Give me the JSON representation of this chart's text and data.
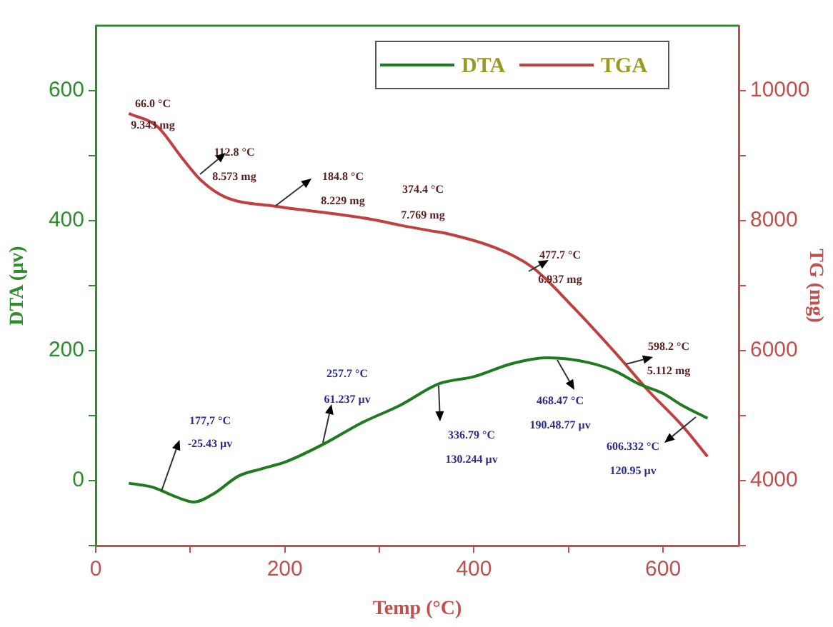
{
  "chart_data": {
    "type": "line",
    "xlabel": "Temp (°C)",
    "ylabel": "DTA (µv)",
    "y2label": "TG (mg)",
    "xlim": [
      0,
      680
    ],
    "xticks": [
      0,
      {
        "value": 100,
        "label": null
      },
      200,
      {
        "value": 300,
        "label": null
      },
      400,
      {
        "value": 500,
        "label": null
      },
      600
    ],
    "ylim": [
      -100,
      700
    ],
    "yticks": [
      {
        "value": -100,
        "label": null
      },
      0,
      {
        "value": 100,
        "label": null
      },
      200,
      {
        "value": 300,
        "label": null
      },
      400,
      {
        "value": 500,
        "label": null
      },
      600
    ],
    "y2lim": [
      3000,
      11000
    ],
    "y2ticks": [
      {
        "value": 3000,
        "label": null
      },
      4000,
      {
        "value": 5000,
        "label": null
      },
      6000,
      {
        "value": 7000,
        "label": null
      },
      8000,
      {
        "value": 9000,
        "label": null
      },
      10000
    ],
    "grid": false,
    "legend": "top right",
    "marker": "none",
    "line_style": "solid",
    "series": [
      {
        "name": "DTA",
        "color": "#1e7b1e",
        "x": [
          35,
          60,
          80,
          104,
          125,
          151,
          175,
          201,
          242,
          280,
          322,
          363,
          400,
          440,
          478,
          520,
          550,
          574,
          600,
          620,
          647
        ],
        "values": [
          -4,
          -10,
          -22,
          -33,
          -20,
          7,
          18,
          29,
          57,
          88,
          116,
          149,
          160,
          180,
          189,
          182,
          168,
          149,
          134,
          116,
          96
        ]
      },
      {
        "name": "TGA",
        "color": "#c04040",
        "axis": "y2",
        "x": [
          35,
          65,
          91,
          110,
          136,
          191,
          250,
          292,
          322,
          352,
          372,
          423,
          462,
          503,
          550,
          584,
          620,
          647
        ],
        "values": [
          9650,
          9450,
          8970,
          8640,
          8370,
          8220,
          8110,
          8020,
          7930,
          7850,
          7800,
          7580,
          7280,
          6700,
          5960,
          5390,
          4850,
          4370
        ]
      }
    ],
    "annotations": [
      "66.0 °C",
      "9.343 mg",
      "112.8 °C",
      "8.573 mg",
      "184.8 °C",
      "8.229 mg",
      "374.4 °C",
      "7.769 mg",
      "477.7 °C",
      "6.937 mg",
      "598.2 °C",
      "5.112 mg",
      "177,7 °C",
      {
        "text": "-25.43 µv",
        "x": 70,
        "y": -16
      },
      "257.7 °C",
      "61.237 µv",
      "336.79 °C",
      "130.244 µv",
      "468.47 °C",
      "190.48.77 µv",
      "606.332 °C",
      "120.95 µv"
    ]
  }
}
